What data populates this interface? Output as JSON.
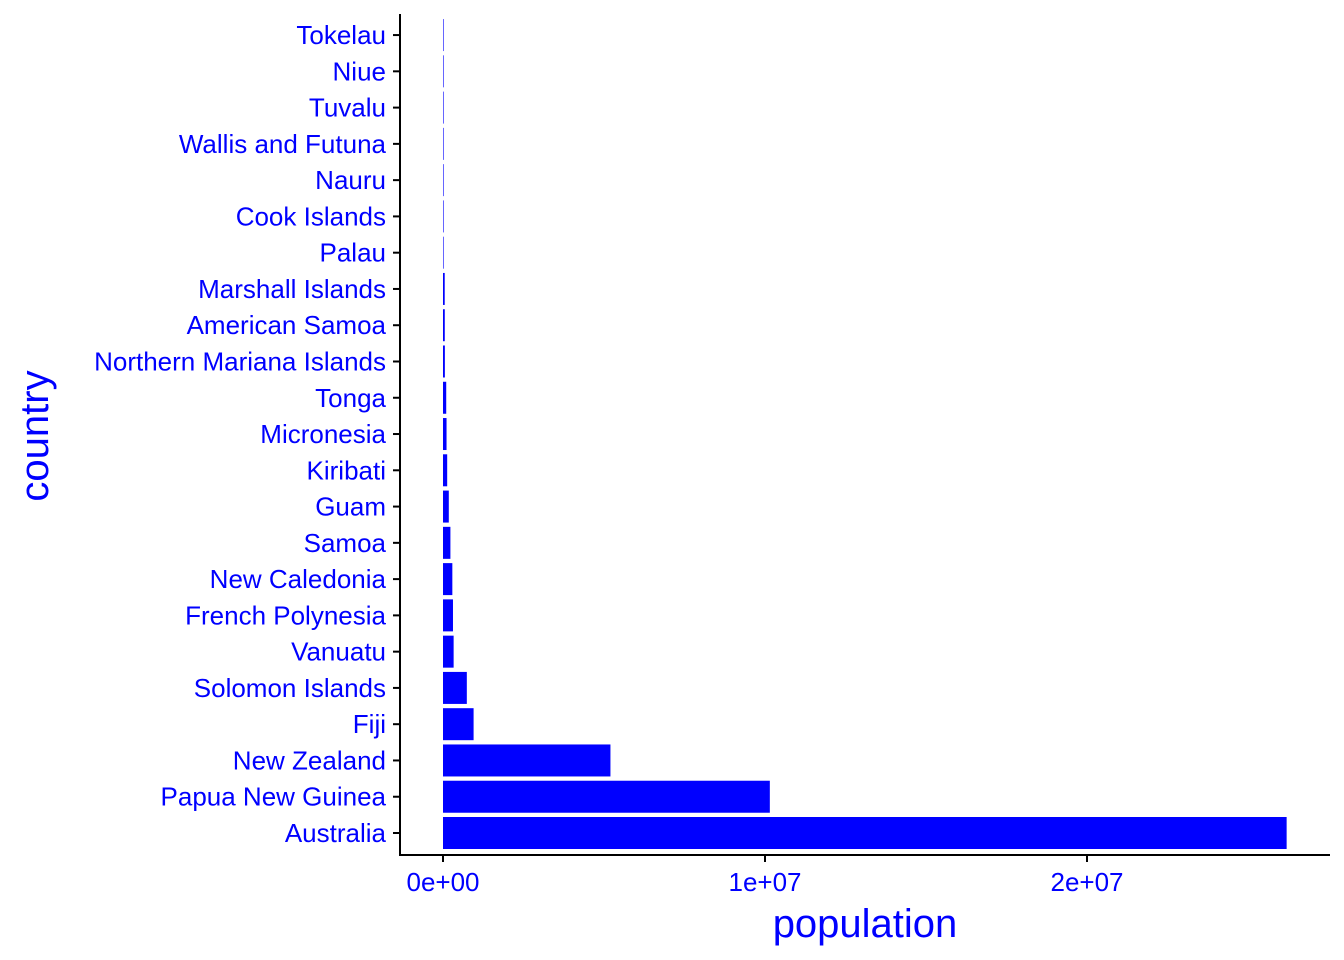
{
  "chart_data": {
    "type": "bar",
    "orientation": "horizontal",
    "title": "",
    "xlabel": "population",
    "ylabel": "country",
    "bar_color": "#0000ff",
    "text_color": "#0000ff",
    "axis_color": "#000000",
    "grid": false,
    "xlim": [
      0,
      27500000
    ],
    "x_ticks": [
      {
        "value": 0,
        "label": "0e+00"
      },
      {
        "value": 10000000,
        "label": "1e+07"
      },
      {
        "value": 20000000,
        "label": "2e+07"
      }
    ],
    "categories": [
      "Australia",
      "Papua New Guinea",
      "New Zealand",
      "Fiji",
      "Solomon Islands",
      "Vanuatu",
      "French Polynesia",
      "New Caledonia",
      "Samoa",
      "Guam",
      "Kiribati",
      "Micronesia",
      "Tonga",
      "Northern Mariana Islands",
      "American Samoa",
      "Marshall Islands",
      "Palau",
      "Cook Islands",
      "Nauru",
      "Wallis and Futuna",
      "Tuvalu",
      "Niue",
      "Tokelau"
    ],
    "values": [
      26200000,
      10150000,
      5200000,
      950000,
      740000,
      330000,
      310000,
      290000,
      230000,
      180000,
      130000,
      110000,
      100000,
      58000,
      55000,
      53000,
      18000,
      15000,
      12000,
      11000,
      11000,
      1600,
      1400
    ]
  }
}
